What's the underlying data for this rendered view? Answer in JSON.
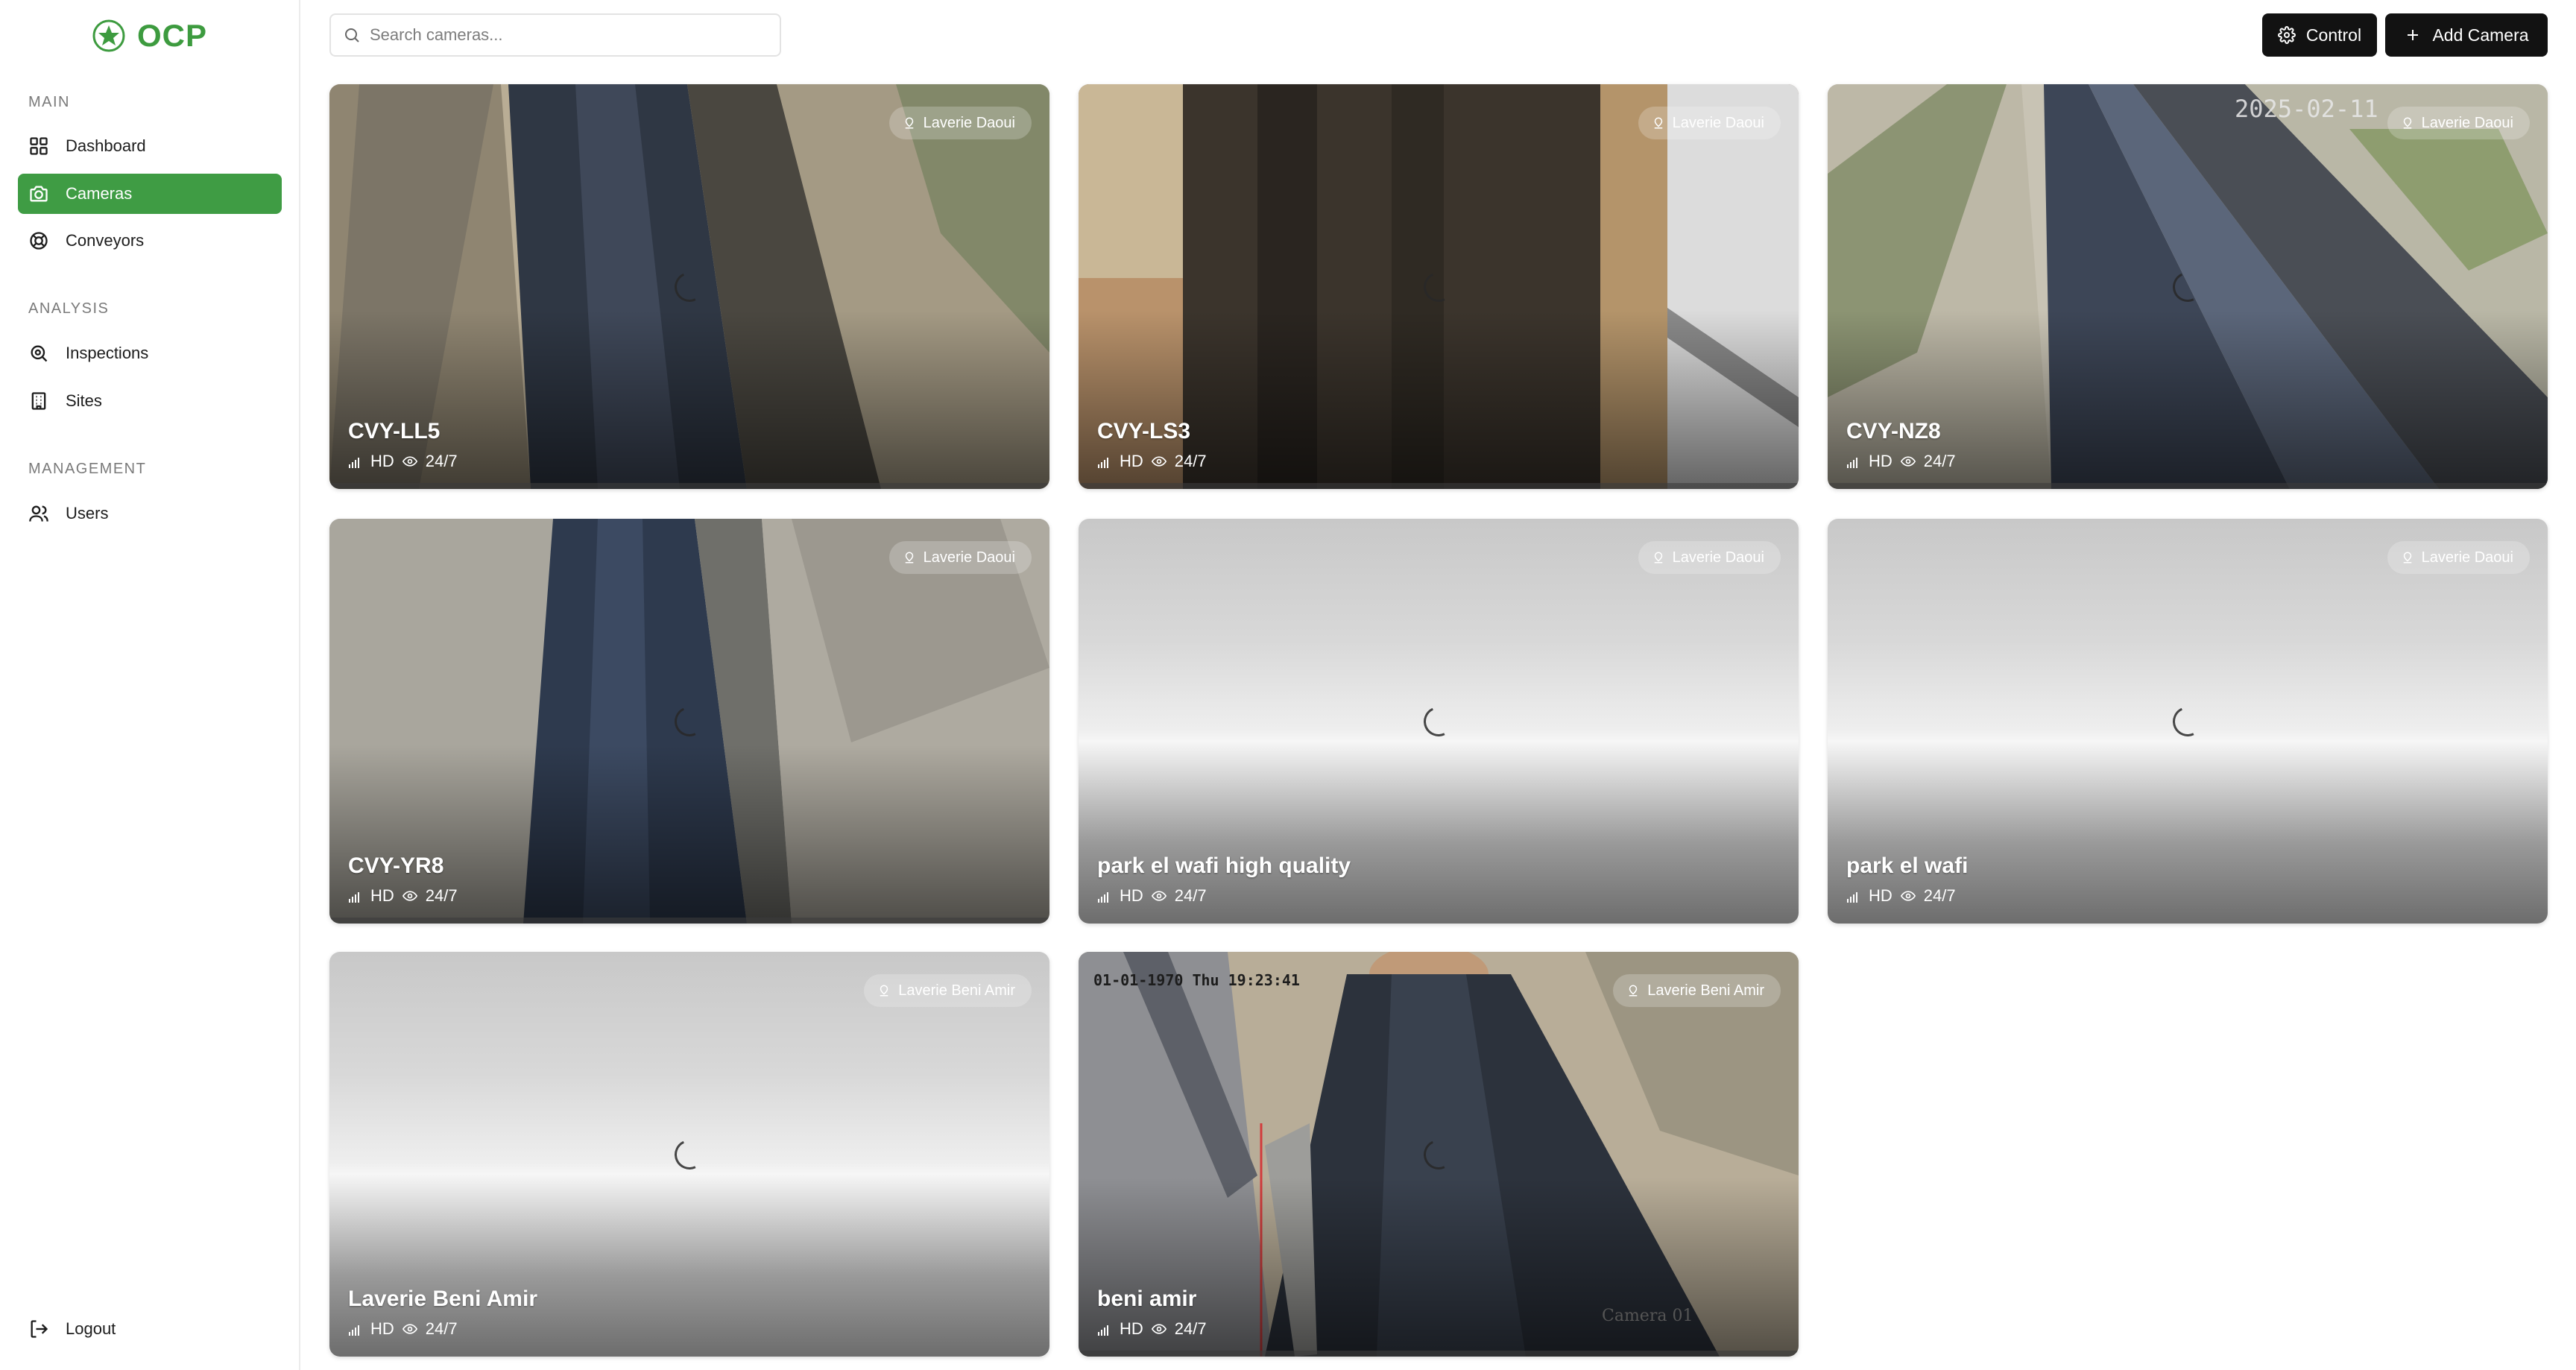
{
  "app": {
    "brand": "OCP",
    "brand_color": "#3d9b3f"
  },
  "sidebar": {
    "sections": [
      {
        "label": "MAIN"
      },
      {
        "label": "ANALYSIS"
      },
      {
        "label": "MANAGEMENT"
      }
    ],
    "items": [
      {
        "label": "Dashboard",
        "icon": "grid-icon"
      },
      {
        "label": "Cameras",
        "icon": "camera-icon",
        "active": true
      },
      {
        "label": "Conveyors",
        "icon": "lifebuoy-icon"
      },
      {
        "label": "Inspections",
        "icon": "scan-search-icon"
      },
      {
        "label": "Sites",
        "icon": "building-icon"
      },
      {
        "label": "Users",
        "icon": "users-icon"
      }
    ],
    "logout_label": "Logout"
  },
  "search": {
    "placeholder": "Search cameras..."
  },
  "toolbar": {
    "control_label": "Control",
    "add_camera_label": "Add Camera"
  },
  "cameras": [
    {
      "name": "CVY-LL5",
      "site": "Laverie Daoui",
      "quality": "HD",
      "uptime": "24/7",
      "feed": "conveyor-sand"
    },
    {
      "name": "CVY-LS3",
      "site": "Laverie Daoui",
      "quality": "HD",
      "uptime": "24/7",
      "feed": "conveyor-vertical"
    },
    {
      "name": "CVY-NZ8",
      "site": "Laverie Daoui",
      "quality": "HD",
      "uptime": "24/7",
      "feed": "conveyor-outdoor",
      "overlay_text": "2025-02-11"
    },
    {
      "name": "CVY-YR8",
      "site": "Laverie Daoui",
      "quality": "HD",
      "uptime": "24/7",
      "feed": "conveyor-rollers"
    },
    {
      "name": "park el wafi high quality",
      "site": "Laverie Daoui",
      "quality": "HD",
      "uptime": "24/7",
      "feed": "blank"
    },
    {
      "name": "park el wafi",
      "site": "Laverie Daoui",
      "quality": "HD",
      "uptime": "24/7",
      "feed": "blank"
    },
    {
      "name": "Laverie Beni Amir",
      "site": "Laverie Beni Amir",
      "quality": "HD",
      "uptime": "24/7",
      "feed": "blank"
    },
    {
      "name": "beni amir",
      "site": "Laverie Beni Amir",
      "quality": "HD",
      "uptime": "24/7",
      "feed": "conveyor-indoor",
      "overlay_text": "01-01-1970 Thu 19:23:41",
      "overlay_caption": "Camera 01"
    }
  ]
}
